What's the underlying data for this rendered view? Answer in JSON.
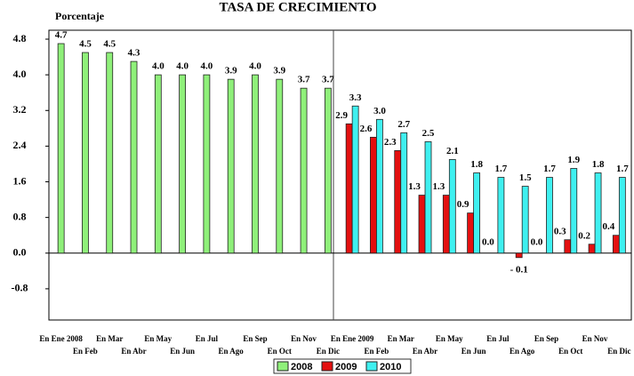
{
  "chart_data": {
    "type": "bar",
    "title": "TASA DE CRECIMIENTO",
    "ylabel": "Porcentaje",
    "categories": [
      "En Ene 2008",
      "En Feb",
      "En Mar",
      "En Abr",
      "En May",
      "En Jun",
      "En Jul",
      "En Ago",
      "En Sep",
      "En Oct",
      "En Nov",
      "En Dic",
      "En Ene 2009",
      "En Feb",
      "En Mar",
      "En Abr",
      "En May",
      "En Jun",
      "En Jul",
      "En Ago",
      "En Sep",
      "En Oct",
      "En Nov",
      "En Dic"
    ],
    "series": [
      {
        "name": "2008",
        "color": "#8ff07a",
        "values": [
          4.7,
          4.5,
          4.5,
          4.3,
          4.0,
          4.0,
          4.0,
          3.9,
          4.0,
          3.9,
          3.7,
          3.7,
          null,
          null,
          null,
          null,
          null,
          null,
          null,
          null,
          null,
          null,
          null,
          null
        ],
        "value_labels": [
          "4.7",
          "4.5",
          "4.5",
          "4.3",
          "4.0",
          "4.0",
          "4.0",
          "3.9",
          "4.0",
          "3.9",
          "3.7",
          "3.7",
          null,
          null,
          null,
          null,
          null,
          null,
          null,
          null,
          null,
          null,
          null,
          null
        ]
      },
      {
        "name": "2009",
        "color": "#e41010",
        "values": [
          null,
          null,
          null,
          null,
          null,
          null,
          null,
          null,
          null,
          null,
          null,
          null,
          2.9,
          2.6,
          2.3,
          1.3,
          1.3,
          0.9,
          0.0,
          -0.1,
          0.0,
          0.3,
          0.2,
          0.4
        ],
        "value_labels": [
          null,
          null,
          null,
          null,
          null,
          null,
          null,
          null,
          null,
          null,
          null,
          null,
          "2.9",
          "2.6",
          "2.3",
          "1.3",
          "1.3",
          "0.9",
          "0.0",
          "- 0.1",
          "0.0",
          "0.3",
          "0.2",
          "0.4"
        ]
      },
      {
        "name": "2010",
        "color": "#3ff0f0",
        "values": [
          null,
          null,
          null,
          null,
          null,
          null,
          null,
          null,
          null,
          null,
          null,
          null,
          3.3,
          3.0,
          2.7,
          2.5,
          2.1,
          1.8,
          1.7,
          1.5,
          1.7,
          1.9,
          1.8,
          1.7
        ],
        "value_labels": [
          null,
          null,
          null,
          null,
          null,
          null,
          null,
          null,
          null,
          null,
          null,
          null,
          "3.3",
          "3.0",
          "2.7",
          "2.5",
          "2.1",
          "1.8",
          "1.7",
          "1.5",
          "1.7",
          "1.9",
          "1.8",
          "1.7"
        ]
      }
    ],
    "ylim": [
      -1.5,
      5.0
    ],
    "yticks": [
      4.8,
      {
        "value": 4.0,
        "label": "4.0"
      },
      3.2,
      2.4,
      1.6,
      0.8,
      {
        "value": 0.0,
        "label": "0.0"
      },
      -0.8
    ],
    "grid": false,
    "legend": "bottom"
  }
}
